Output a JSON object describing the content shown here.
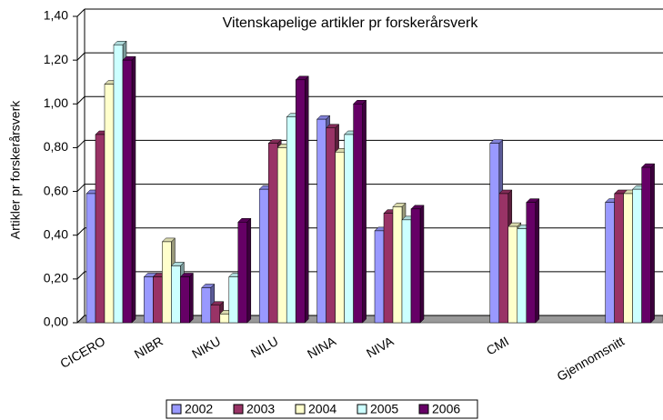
{
  "chart_data": {
    "type": "bar",
    "title": "Vitenskapelige artikler pr forskerårsverk",
    "y_label": "Artikler pr forskerårsverk",
    "categories": [
      "CICERO",
      "NIBR",
      "NIKU",
      "NILU",
      "NINA",
      "NIVA",
      null,
      "CMI",
      null,
      "Gjennomsnitt"
    ],
    "series": [
      {
        "name": "2002",
        "color": "#9999ff",
        "values": [
          0.59,
          0.21,
          0.16,
          0.61,
          0.93,
          0.42,
          null,
          0.82,
          null,
          0.55
        ]
      },
      {
        "name": "2003",
        "color": "#993366",
        "values": [
          0.86,
          0.21,
          0.08,
          0.82,
          0.89,
          0.5,
          null,
          0.59,
          null,
          0.59
        ]
      },
      {
        "name": "2004",
        "color": "#ffffcc",
        "values": [
          1.09,
          0.37,
          0.04,
          0.8,
          0.78,
          0.53,
          null,
          0.44,
          null,
          0.59
        ]
      },
      {
        "name": "2005",
        "color": "#ccffff",
        "values": [
          1.27,
          0.26,
          0.21,
          0.94,
          0.86,
          0.47,
          null,
          0.43,
          null,
          0.61
        ]
      },
      {
        "name": "2006",
        "color": "#660066",
        "values": [
          1.2,
          0.21,
          0.46,
          1.11,
          1.0,
          0.52,
          null,
          0.55,
          null,
          0.71
        ]
      }
    ],
    "ylim": [
      0,
      1.4
    ],
    "yticks": [
      {
        "value": 0,
        "label": "0,00"
      },
      {
        "value": 0.2,
        "label": "0,20"
      },
      {
        "value": 0.4,
        "label": "0,40"
      },
      {
        "value": 0.6,
        "label": "0,60"
      },
      {
        "value": 0.8,
        "label": "0,80"
      },
      {
        "value": 1.0,
        "label": "1,00"
      },
      {
        "value": 1.2,
        "label": "1,20"
      },
      {
        "value": 1.4,
        "label": "1,40"
      }
    ],
    "grid": true,
    "legend": "bottom"
  }
}
